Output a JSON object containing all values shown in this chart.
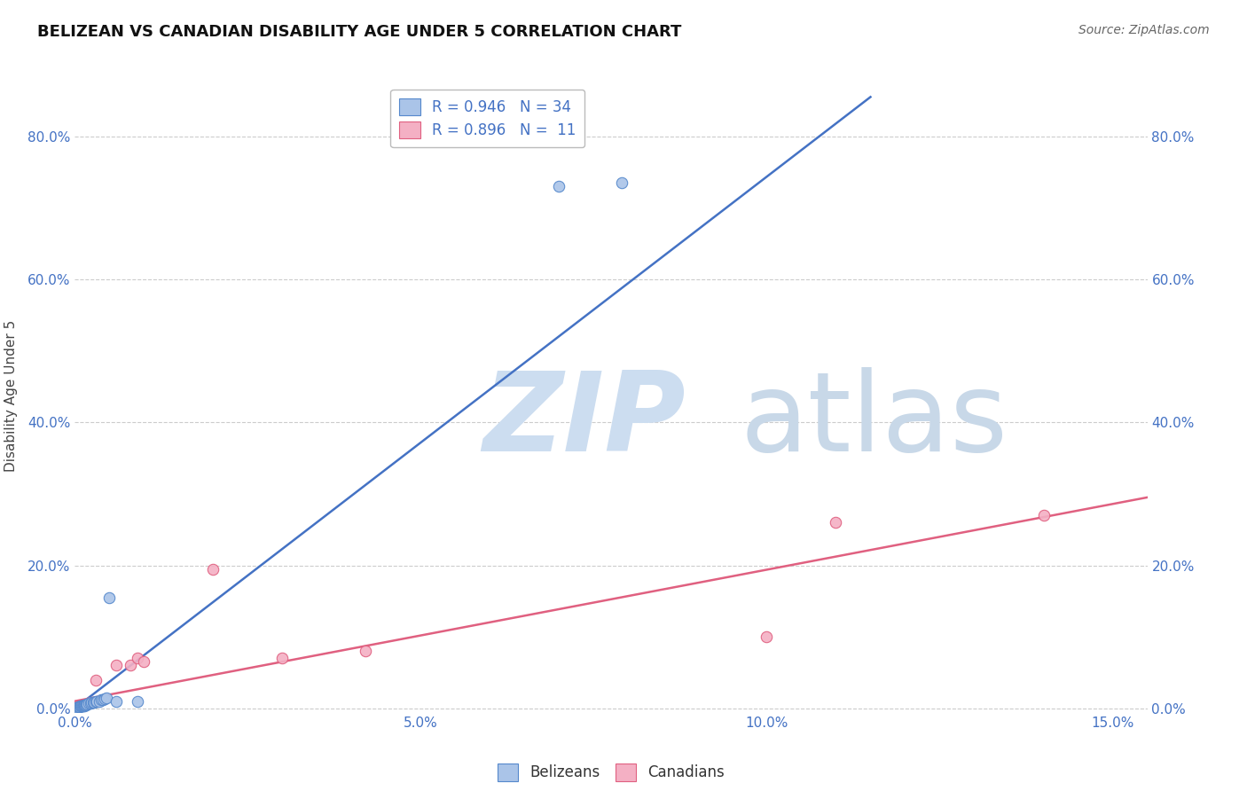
{
  "title": "BELIZEAN VS CANADIAN DISABILITY AGE UNDER 5 CORRELATION CHART",
  "source": "Source: ZipAtlas.com",
  "ylabel": "Disability Age Under 5",
  "xlim": [
    0.0,
    0.155
  ],
  "ylim": [
    -0.005,
    0.88
  ],
  "belizean_color": "#aac4e8",
  "belizean_edge_color": "#5588cc",
  "canadian_color": "#f4b0c4",
  "canadian_edge_color": "#e06080",
  "blue_line_color": "#4472c4",
  "pink_line_color": "#e06080",
  "grid_color": "#cccccc",
  "watermark_zip_color": "#ccddf0",
  "watermark_atlas_color": "#c8d8e8",
  "r_belizean": "0.946",
  "n_belizean": "34",
  "r_canadian": "0.896",
  "n_canadian": "11",
  "belizean_scatter_x": [
    0.0002,
    0.0003,
    0.0004,
    0.0005,
    0.0006,
    0.0007,
    0.0008,
    0.0009,
    0.001,
    0.0011,
    0.0012,
    0.0013,
    0.0014,
    0.0015,
    0.0016,
    0.0017,
    0.0018,
    0.002,
    0.0022,
    0.0024,
    0.0026,
    0.0028,
    0.003,
    0.0032,
    0.0035,
    0.0038,
    0.004,
    0.0043,
    0.0046,
    0.005,
    0.006,
    0.009,
    0.07,
    0.079
  ],
  "belizean_scatter_y": [
    0.001,
    0.001,
    0.001,
    0.002,
    0.002,
    0.002,
    0.003,
    0.003,
    0.003,
    0.004,
    0.004,
    0.004,
    0.005,
    0.005,
    0.005,
    0.006,
    0.006,
    0.007,
    0.007,
    0.008,
    0.008,
    0.009,
    0.01,
    0.01,
    0.01,
    0.012,
    0.012,
    0.013,
    0.014,
    0.155,
    0.01,
    0.01,
    0.73,
    0.735
  ],
  "canadian_scatter_x": [
    0.003,
    0.006,
    0.008,
    0.009,
    0.01,
    0.02,
    0.03,
    0.042,
    0.1,
    0.11,
    0.14
  ],
  "canadian_scatter_y": [
    0.04,
    0.06,
    0.06,
    0.07,
    0.065,
    0.195,
    0.07,
    0.08,
    0.1,
    0.26,
    0.27
  ],
  "blue_line_x": [
    0.0,
    0.115
  ],
  "blue_line_y": [
    0.0,
    0.855
  ],
  "pink_line_x": [
    0.0,
    0.155
  ],
  "pink_line_y": [
    0.01,
    0.295
  ],
  "title_fontsize": 13,
  "source_fontsize": 10,
  "axis_label_fontsize": 11,
  "tick_fontsize": 11,
  "legend_fontsize": 12,
  "marker_size": 80,
  "xticks": [
    0.0,
    0.05,
    0.1,
    0.15
  ],
  "xticklabels": [
    "0.0%",
    "5.0%",
    "10.0%",
    "15.0%"
  ],
  "yticks": [
    0.0,
    0.2,
    0.4,
    0.6,
    0.8
  ],
  "yticklabels": [
    "0.0%",
    "20.0%",
    "40.0%",
    "60.0%",
    "80.0%"
  ]
}
